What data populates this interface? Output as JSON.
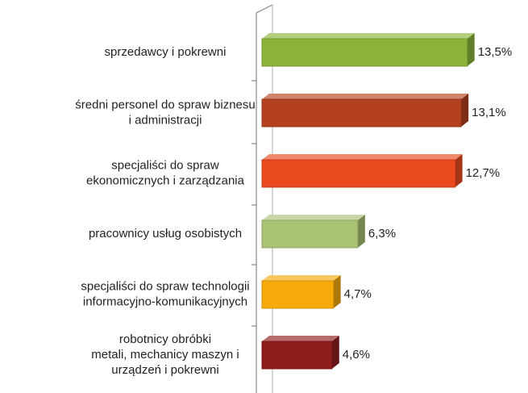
{
  "chart_data": {
    "type": "hbar",
    "categories": [
      [
        "sprzedawcy i pokrewni"
      ],
      [
        "średni personel do spraw biznesu",
        "i administracji"
      ],
      [
        "specjaliści do spraw",
        "ekonomicznych i zarządzania"
      ],
      [
        "pracownicy usług osobistych"
      ],
      [
        "specjaliści do spraw technologii",
        "informacyjno-komunikacyjnych"
      ],
      [
        "robotnicy obróbki",
        "metali, mechanicy maszyn i",
        "urządzeń i pokrewni"
      ]
    ],
    "values": [
      13.5,
      13.1,
      12.7,
      6.3,
      4.7,
      4.6
    ],
    "value_labels": [
      "13,5%",
      "13,1%",
      "12,7%",
      "6,3%",
      "4,7%",
      "4,6%"
    ],
    "colors": [
      "#8cb43a",
      "#b3401f",
      "#ea4a1e",
      "#a9c274",
      "#f6ab0a",
      "#8f1d1c"
    ],
    "xlim": [
      0,
      15
    ]
  }
}
